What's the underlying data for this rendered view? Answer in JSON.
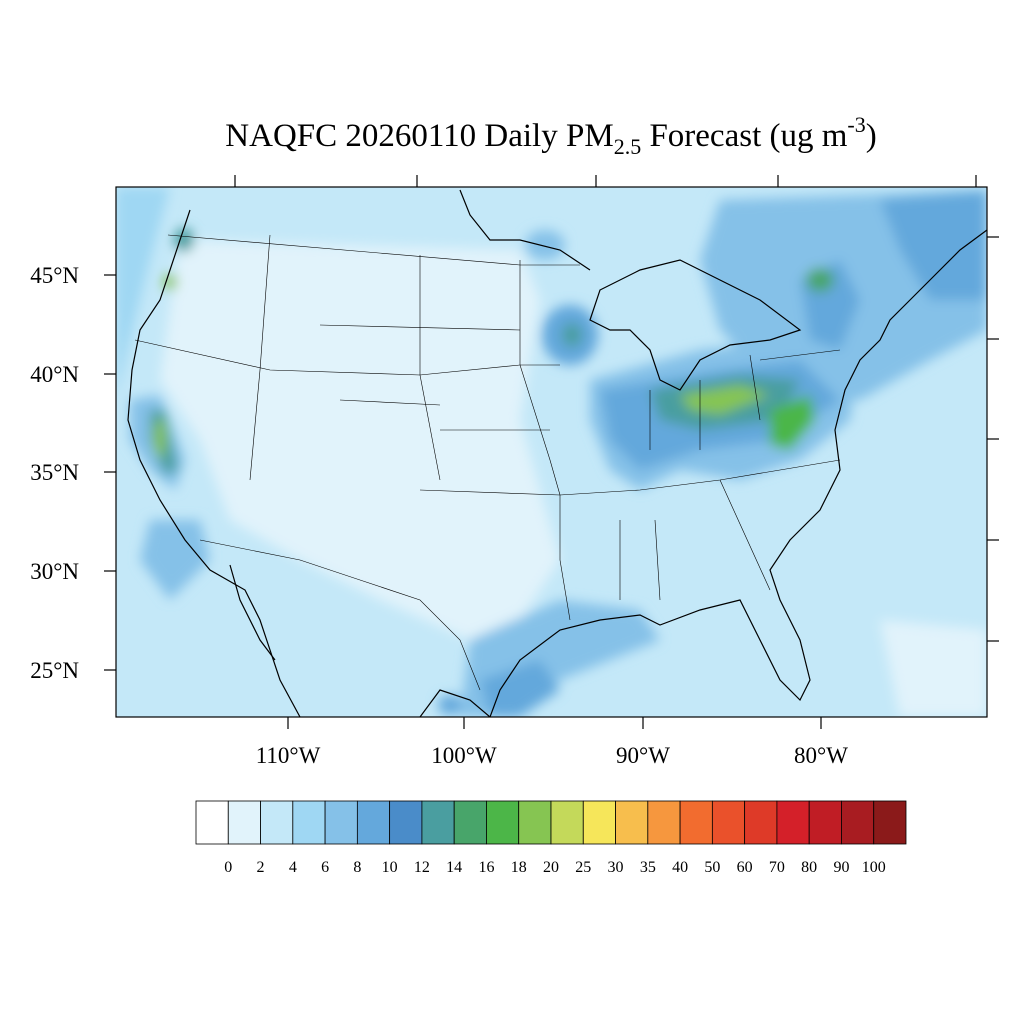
{
  "title": {
    "parts": [
      "NAQFC 20260110 Daily PM",
      "2.5",
      " Forecast (ug m",
      "-3",
      ")"
    ]
  },
  "lat_labels": [
    "45°N",
    "40°N",
    "35°N",
    "30°N",
    "25°N"
  ],
  "lon_labels": [
    "110°W",
    "100°W",
    "90°W",
    "80°W"
  ],
  "colorbar": {
    "levels": [
      0,
      2,
      4,
      6,
      8,
      10,
      12,
      14,
      16,
      18,
      20,
      25,
      30,
      35,
      40,
      50,
      60,
      70,
      80,
      90,
      100
    ],
    "colors": [
      "#ffffff",
      "#e1f3fb",
      "#c4e8f8",
      "#9fd7f3",
      "#85c1e8",
      "#64a8dc",
      "#4a8cc9",
      "#4a9ea0",
      "#48a56a",
      "#4cb648",
      "#86c552",
      "#c4d95a",
      "#f6e65a",
      "#f7be4d",
      "#f6973e",
      "#f26c2f",
      "#ea512b",
      "#de3a28",
      "#d42029",
      "#c01d25",
      "#a81c21",
      "#8b1a1a"
    ]
  }
}
